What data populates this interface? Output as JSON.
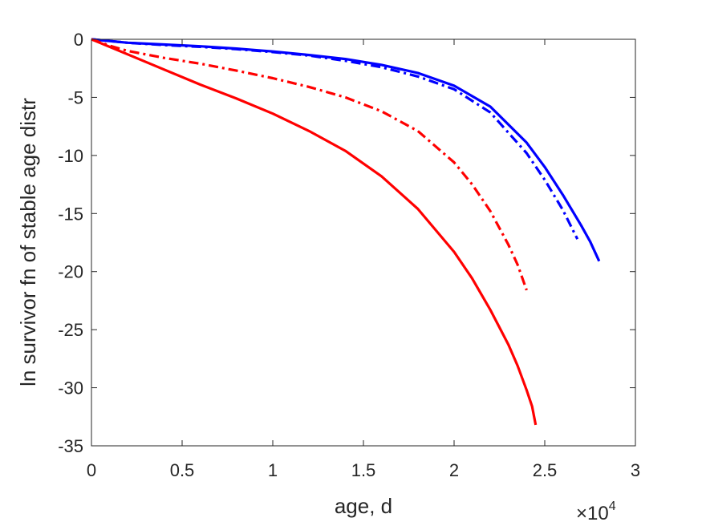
{
  "chart_data": {
    "type": "line",
    "xlabel": "age, d",
    "ylabel": "ln survivor fn of stable age distr",
    "x_multiplier": {
      "base": "×10",
      "exponent": "4"
    },
    "xlim": [
      0,
      30000
    ],
    "ylim": [
      -35,
      0
    ],
    "xticks": [
      0,
      5000,
      10000,
      15000,
      20000,
      25000,
      30000
    ],
    "xtick_labels": [
      "0",
      "0.5",
      "1",
      "1.5",
      "2",
      "2.5",
      "3"
    ],
    "yticks": [
      0,
      -5,
      -10,
      -15,
      -20,
      -25,
      -30,
      -35
    ],
    "ytick_labels": [
      "0",
      "-5",
      "-10",
      "-15",
      "-20",
      "-25",
      "-30",
      "-35"
    ],
    "grid": false,
    "series": [
      {
        "color": "#0000ff",
        "dash": "solid",
        "x": [
          0,
          2000,
          4000,
          6000,
          8000,
          10000,
          12000,
          14000,
          16000,
          18000,
          20000,
          22000,
          24000,
          25000,
          26000,
          27000,
          27500,
          28000
        ],
        "y": [
          0,
          -0.3,
          -0.45,
          -0.6,
          -0.8,
          -1.05,
          -1.35,
          -1.7,
          -2.2,
          -2.9,
          -4.0,
          -5.8,
          -8.9,
          -11.0,
          -13.4,
          -16.0,
          -17.4,
          -19.1
        ]
      },
      {
        "color": "#0000ff",
        "dash": "dashdot",
        "x": [
          0,
          2000,
          4000,
          6000,
          8000,
          10000,
          12000,
          14000,
          16000,
          18000,
          20000,
          22000,
          24000,
          25000,
          26000,
          26800
        ],
        "y": [
          0,
          -0.3,
          -0.5,
          -0.65,
          -0.85,
          -1.1,
          -1.4,
          -1.85,
          -2.4,
          -3.2,
          -4.3,
          -6.3,
          -9.8,
          -12.1,
          -14.7,
          -17.2
        ]
      },
      {
        "color": "#ff0000",
        "dash": "dashdot",
        "x": [
          0,
          1000,
          2000,
          4000,
          6000,
          8000,
          10000,
          12000,
          14000,
          16000,
          18000,
          20000,
          21000,
          22000,
          23000,
          23500,
          24000
        ],
        "y": [
          0,
          -0.55,
          -1.0,
          -1.6,
          -2.1,
          -2.7,
          -3.35,
          -4.1,
          -5.0,
          -6.2,
          -7.9,
          -10.6,
          -12.5,
          -14.8,
          -17.7,
          -19.4,
          -21.6
        ]
      },
      {
        "color": "#ff0000",
        "dash": "solid",
        "x": [
          0,
          2000,
          4000,
          6000,
          8000,
          10000,
          12000,
          14000,
          16000,
          18000,
          20000,
          21000,
          22000,
          23000,
          23500,
          24000,
          24300,
          24500
        ],
        "y": [
          0,
          -1.3,
          -2.6,
          -3.9,
          -5.1,
          -6.4,
          -7.9,
          -9.6,
          -11.8,
          -14.6,
          -18.3,
          -20.6,
          -23.3,
          -26.3,
          -28.1,
          -30.2,
          -31.6,
          -33.2
        ]
      }
    ]
  }
}
